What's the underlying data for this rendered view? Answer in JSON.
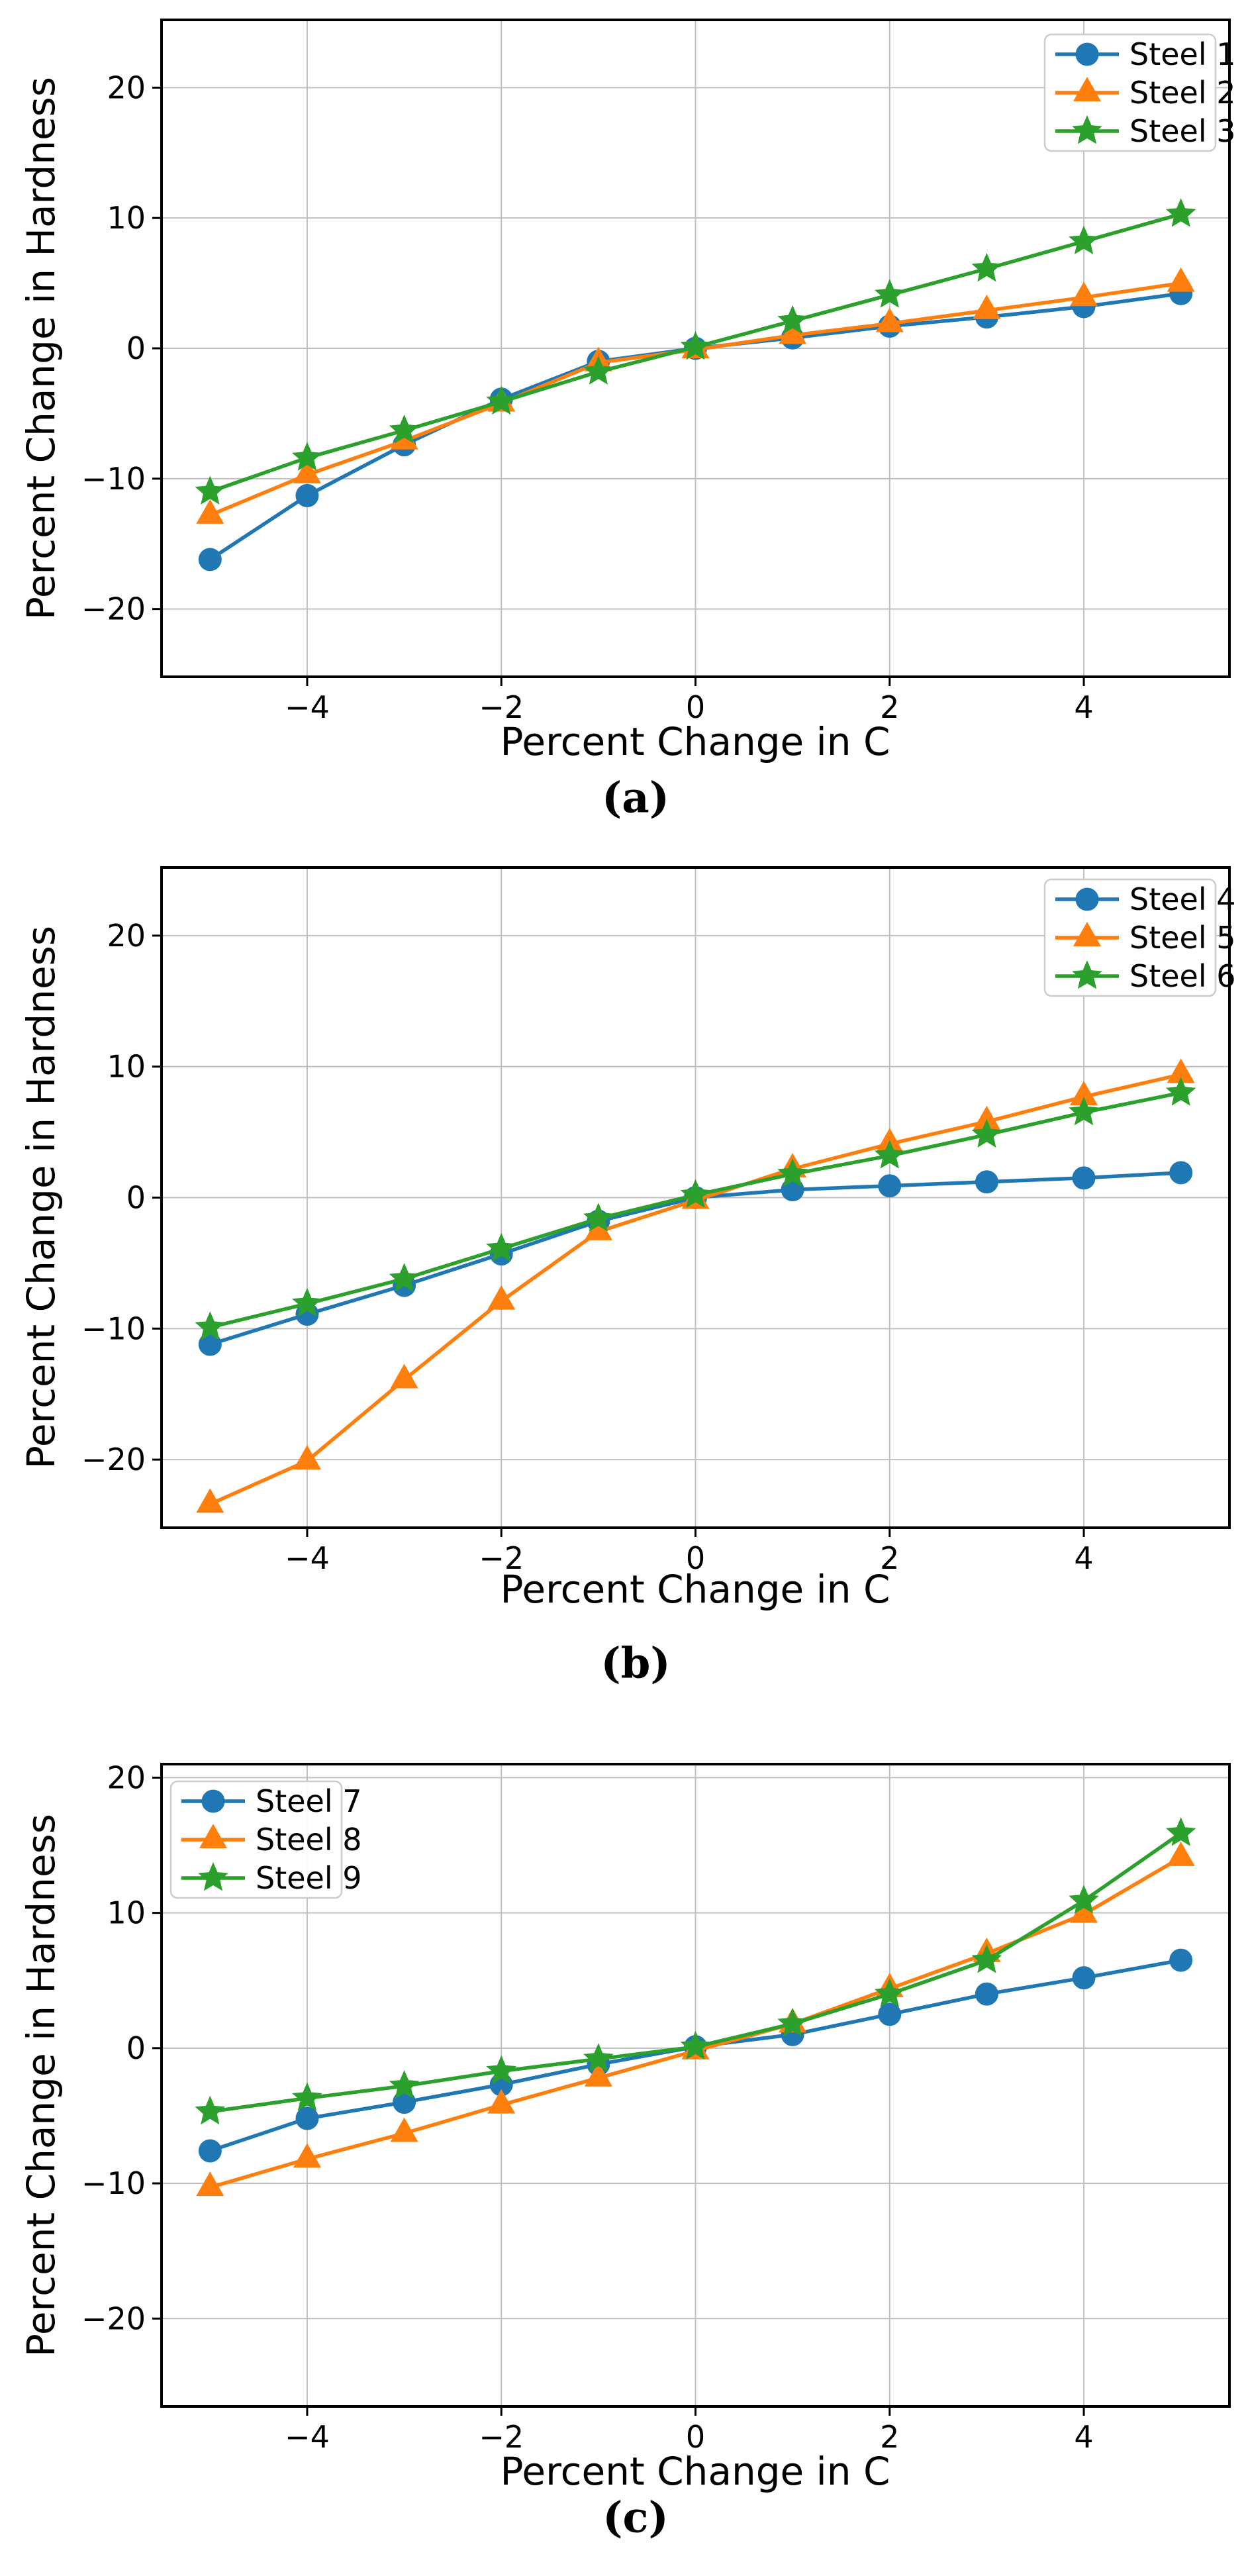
{
  "page": {
    "background": "#ffffff"
  },
  "colors": {
    "steel_blue": "#1f77b4",
    "steel_orange": "#ff7f0e",
    "steel_green": "#2ca02c",
    "grid": "#c0c0c0",
    "spine": "#000000",
    "legend_border": "#cccccc"
  },
  "chart_data": [
    {
      "type": "line",
      "caption": "(a)",
      "title": "",
      "xlabel": "Percent Change in C",
      "ylabel": "Percent Change in Hardness",
      "x": [
        -5,
        -4,
        -3,
        -2,
        -1,
        0,
        1,
        2,
        3,
        4,
        5
      ],
      "xlim": [
        -5.5,
        5.5
      ],
      "ylim": [
        -25.2,
        25.2
      ],
      "xticks": [
        -4,
        -2,
        0,
        2,
        4
      ],
      "yticks": [
        -20,
        -10,
        0,
        10,
        20
      ],
      "grid": true,
      "legend_loc": "upper-right",
      "series": [
        {
          "name": "Steel 1",
          "color": "#1f77b4",
          "marker": "circle",
          "values": [
            -16.2,
            -11.3,
            -7.4,
            -3.9,
            -1.0,
            0.0,
            0.8,
            1.7,
            2.4,
            3.2,
            4.2
          ]
        },
        {
          "name": "Steel 2",
          "color": "#ff7f0e",
          "marker": "triangle",
          "values": [
            -12.8,
            -9.7,
            -7.1,
            -4.2,
            -1.1,
            -0.1,
            1.0,
            1.9,
            2.9,
            3.9,
            5.0
          ]
        },
        {
          "name": "Steel 3",
          "color": "#2ca02c",
          "marker": "star",
          "values": [
            -11.0,
            -8.4,
            -6.3,
            -4.1,
            -1.8,
            0.1,
            2.1,
            4.1,
            6.1,
            8.2,
            10.3
          ]
        }
      ]
    },
    {
      "type": "line",
      "caption": "(b)",
      "title": "",
      "xlabel": "Percent Change in C",
      "ylabel": "Percent Change in Hardness",
      "x": [
        -5,
        -4,
        -3,
        -2,
        -1,
        0,
        1,
        2,
        3,
        4,
        5
      ],
      "xlim": [
        -5.5,
        5.5
      ],
      "ylim": [
        -25.2,
        25.2
      ],
      "xticks": [
        -4,
        -2,
        0,
        2,
        4
      ],
      "yticks": [
        -20,
        -10,
        0,
        10,
        20
      ],
      "grid": true,
      "legend_loc": "upper-right",
      "series": [
        {
          "name": "Steel 4",
          "color": "#1f77b4",
          "marker": "circle",
          "values": [
            -11.2,
            -8.9,
            -6.7,
            -4.3,
            -1.8,
            0.0,
            0.6,
            0.9,
            1.2,
            1.5,
            1.9
          ]
        },
        {
          "name": "Steel 5",
          "color": "#ff7f0e",
          "marker": "triangle",
          "values": [
            -23.4,
            -20.1,
            -13.9,
            -7.9,
            -2.6,
            -0.2,
            2.2,
            4.1,
            5.8,
            7.7,
            9.4
          ]
        },
        {
          "name": "Steel 6",
          "color": "#2ca02c",
          "marker": "star",
          "values": [
            -9.9,
            -8.1,
            -6.2,
            -3.9,
            -1.6,
            0.2,
            1.8,
            3.2,
            4.8,
            6.5,
            8.0
          ]
        }
      ]
    },
    {
      "type": "line",
      "caption": "(c)",
      "title": "",
      "xlabel": "Percent Change in C",
      "ylabel": "Percent Change in Hardness",
      "x": [
        -5,
        -4,
        -3,
        -2,
        -1,
        0,
        1,
        2,
        3,
        4,
        5
      ],
      "xlim": [
        -5.5,
        5.5
      ],
      "ylim": [
        -26.5,
        21.0
      ],
      "xticks": [
        -4,
        -2,
        0,
        2,
        4
      ],
      "yticks": [
        -20,
        -10,
        0,
        10,
        20
      ],
      "grid": true,
      "legend_loc": "upper-left",
      "series": [
        {
          "name": "Steel 7",
          "color": "#1f77b4",
          "marker": "circle",
          "values": [
            -7.6,
            -5.2,
            -4.0,
            -2.7,
            -1.2,
            0.1,
            1.0,
            2.5,
            4.0,
            5.2,
            6.5
          ]
        },
        {
          "name": "Steel 8",
          "color": "#ff7f0e",
          "marker": "triangle",
          "values": [
            -10.3,
            -8.2,
            -6.3,
            -4.2,
            -2.2,
            -0.2,
            1.8,
            4.4,
            7.0,
            9.9,
            14.1
          ]
        },
        {
          "name": "Steel 9",
          "color": "#2ca02c",
          "marker": "star",
          "values": [
            -4.7,
            -3.7,
            -2.8,
            -1.7,
            -0.8,
            0.1,
            1.8,
            4.0,
            6.5,
            10.9,
            15.9
          ]
        }
      ]
    }
  ]
}
